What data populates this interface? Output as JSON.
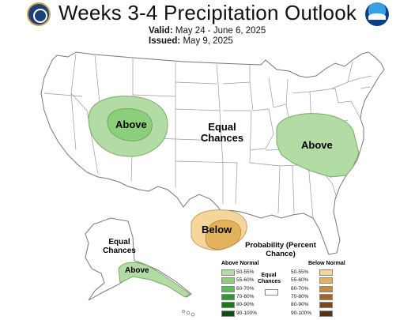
{
  "header": {
    "title": "Weeks 3-4 Precipitation Outlook",
    "valid_label": "Valid:",
    "valid_value": "May 24 - June 6, 2025",
    "issued_label": "Issued:",
    "issued_value": "May 9, 2025"
  },
  "logos": {
    "left": "commerce-seal",
    "right": "NOAA"
  },
  "map": {
    "region_labels": [
      {
        "text": "Above"
      },
      {
        "text": "Equal Chances"
      },
      {
        "text": "Above"
      },
      {
        "text": "Below"
      },
      {
        "text": "Equal Chances"
      },
      {
        "text": "Above"
      }
    ]
  },
  "legend": {
    "title": "Probability (Percent Chance)",
    "above_header": "Above Normal",
    "below_header": "Below Normal",
    "equal_label": "Equal Chances",
    "categories": [
      "50-55%",
      "55-60%",
      "60-70%",
      "70-80%",
      "80-90%",
      "90-100%"
    ],
    "above_colors": [
      "#b3dca4",
      "#8ccf7b",
      "#5bbd54",
      "#2d9a2c",
      "#197a1c",
      "#0b4d12"
    ],
    "below_colors": [
      "#f6d59b",
      "#e3b25c",
      "#c98a3c",
      "#a5652a",
      "#7d461e",
      "#55301a"
    ],
    "equal_color": "#ffffff"
  }
}
